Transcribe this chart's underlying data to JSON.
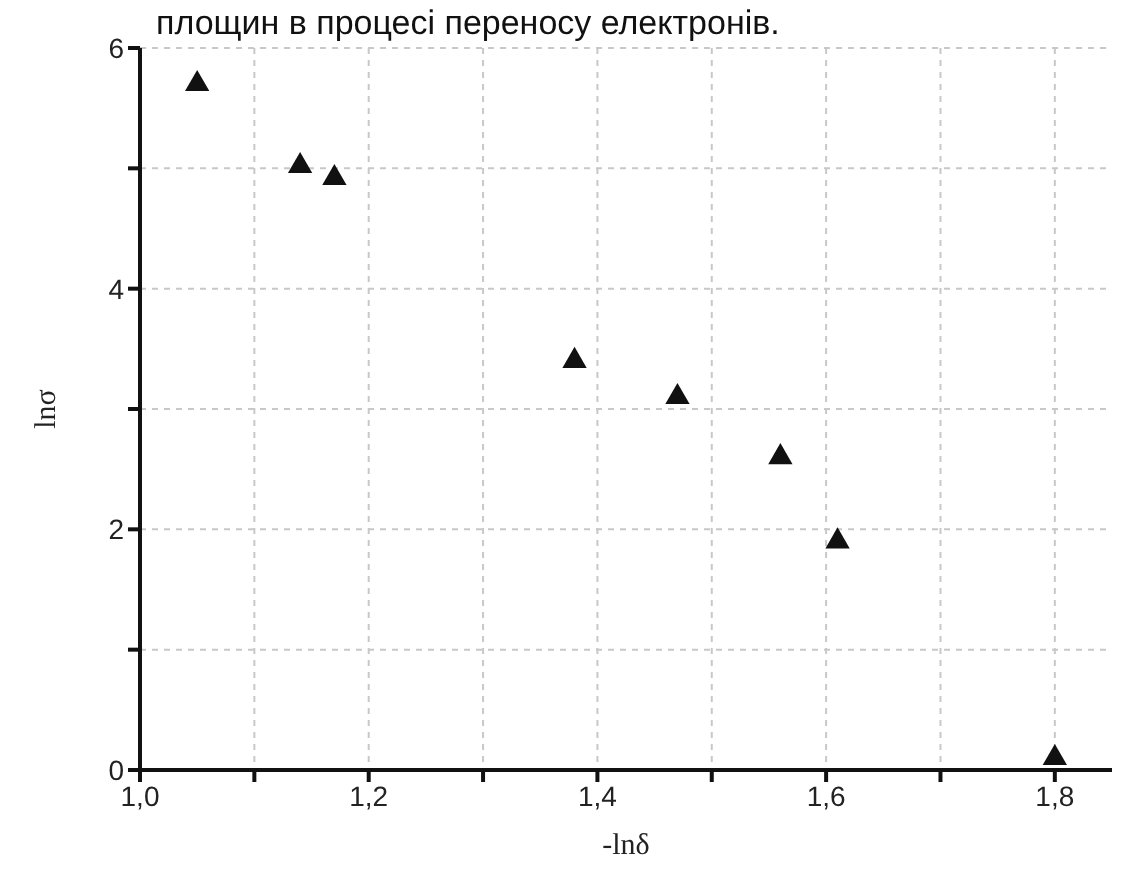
{
  "chart_data": {
    "type": "scatter",
    "xlabel": "-lnδ",
    "ylabel": "lnσ",
    "annotations": [
      "площин в процесі переносу електронів."
    ],
    "x": [
      1.05,
      1.14,
      1.17,
      1.38,
      1.47,
      1.56,
      1.61,
      1.8
    ],
    "series": [
      {
        "color": "#111111",
        "values": [
          5.7,
          5.02,
          4.92,
          3.4,
          3.1,
          2.6,
          1.9,
          0.1
        ]
      }
    ],
    "marker": "triangle",
    "grid": true,
    "legend": false,
    "xlim": [
      1.0,
      1.85
    ],
    "xticks": [
      {
        "value": 1.0,
        "label": "1,0"
      },
      {
        "value": 1.1,
        "label": null
      },
      {
        "value": 1.2,
        "label": "1,2"
      },
      {
        "value": 1.3,
        "label": null
      },
      {
        "value": 1.4,
        "label": "1,4"
      },
      {
        "value": 1.5,
        "label": null
      },
      {
        "value": 1.6,
        "label": "1,6"
      },
      {
        "value": 1.7,
        "label": null
      },
      {
        "value": 1.8,
        "label": "1,8"
      }
    ],
    "ylim": [
      0,
      6
    ],
    "yticks": [
      0,
      {
        "value": 1,
        "label": null
      },
      2,
      {
        "value": 3,
        "label": null
      },
      4,
      {
        "value": 5,
        "label": null
      },
      6
    ]
  }
}
